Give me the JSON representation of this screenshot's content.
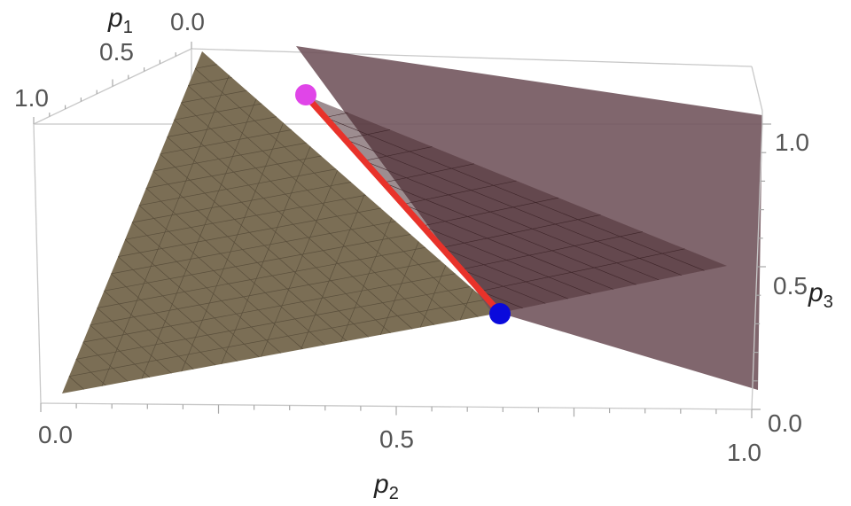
{
  "chart_data": {
    "type": "surface3d",
    "axes": {
      "p1": {
        "label": "p",
        "subscript": "1",
        "ticks": [
          "0.0",
          "0.5",
          "1.0"
        ],
        "range": [
          0,
          1
        ]
      },
      "p2": {
        "label": "p",
        "subscript": "2",
        "ticks": [
          "0.0",
          "0.5",
          "1.0"
        ],
        "range": [
          0,
          1
        ]
      },
      "p3": {
        "label": "p",
        "subscript": "3",
        "ticks": [
          "0.0",
          "0.5",
          "1.0"
        ],
        "range": [
          0,
          1
        ]
      }
    },
    "surfaces": [
      {
        "kind": "simplex-triangle",
        "color": "#7b6e55",
        "mesh": true
      },
      {
        "kind": "vertical-plane",
        "color": "#6e5159",
        "opacity": 0.88
      }
    ],
    "segment": {
      "color": "#e8322a"
    },
    "points": [
      {
        "role": "start",
        "color": "#e045e8"
      },
      {
        "role": "end",
        "color": "#0a0adc"
      }
    ],
    "box": true,
    "grid": false
  }
}
